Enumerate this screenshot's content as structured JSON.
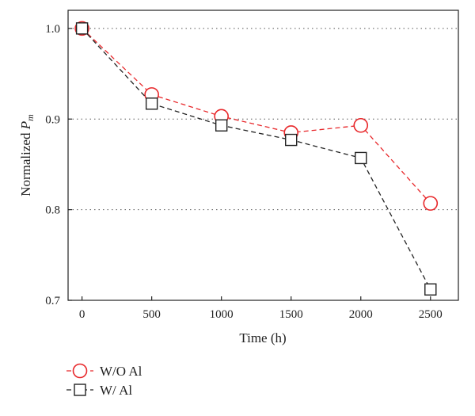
{
  "chart_data": {
    "type": "line",
    "x": [
      0,
      500,
      1000,
      1500,
      2000,
      2500
    ],
    "xticks": [
      "0",
      "500",
      "1000",
      "1500",
      "2000",
      "2500"
    ],
    "yticks": [
      "0.7",
      "0.8",
      "0.9",
      "1.0"
    ],
    "xlim": [
      -100,
      2700
    ],
    "ylim": [
      0.7,
      1.02
    ],
    "xlabel": "Time (h)",
    "ylabel_text": "Normalized ",
    "ylabel_symbol": "P",
    "ylabel_subscript": "m",
    "grid": "horizontal dotted at y ticks",
    "legend_position": "below plot, left",
    "series": [
      {
        "name": "W/O Al",
        "values": [
          1.0,
          0.927,
          0.903,
          0.885,
          0.893,
          0.807
        ],
        "color": "#e8282b",
        "marker": "circle",
        "line_style": "dashed"
      },
      {
        "name": "W/ Al",
        "values": [
          1.0,
          0.917,
          0.893,
          0.877,
          0.857,
          0.712
        ],
        "color": "#222222",
        "marker": "square",
        "line_style": "dashed"
      }
    ]
  }
}
